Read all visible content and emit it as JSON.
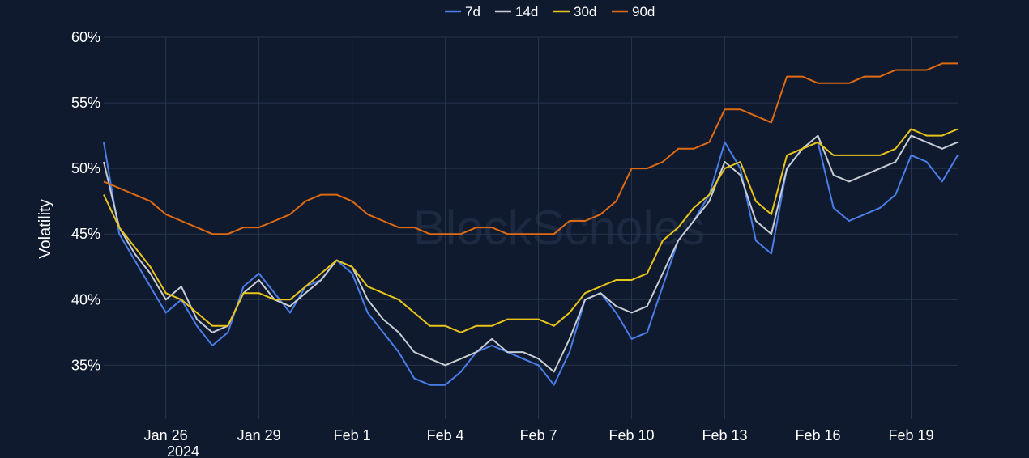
{
  "chart_data": {
    "type": "line",
    "title": "",
    "xlabel": "",
    "ylabel": "Volatility",
    "ylim": [
      0.32,
      0.6
    ],
    "y_ticks": [
      0.35,
      0.4,
      0.45,
      0.5,
      0.55,
      0.6
    ],
    "y_tick_labels": [
      "35%",
      "40%",
      "45%",
      "50%",
      "55%",
      "60%"
    ],
    "x_range": [
      "2024-01-24T00:00",
      "2024-02-20T12:00"
    ],
    "x_ticks": [
      "2024-01-26",
      "2024-01-29",
      "2024-02-01",
      "2024-02-04",
      "2024-02-07",
      "2024-02-10",
      "2024-02-13",
      "2024-02-16",
      "2024-02-19"
    ],
    "x_tick_labels": [
      "Jan 26",
      "Jan 29",
      "Feb 1",
      "Feb 4",
      "Feb 7",
      "Feb 10",
      "Feb 13",
      "Feb 16",
      "Feb 19"
    ],
    "x_tick_year": "2024",
    "grid": true,
    "legend_position": "top-center",
    "watermark": "BlockScholes",
    "x": [
      "2024-01-24T00:00",
      "2024-01-24T12:00",
      "2024-01-25T00:00",
      "2024-01-25T12:00",
      "2024-01-26T00:00",
      "2024-01-26T12:00",
      "2024-01-27T00:00",
      "2024-01-27T12:00",
      "2024-01-28T00:00",
      "2024-01-28T12:00",
      "2024-01-29T00:00",
      "2024-01-29T12:00",
      "2024-01-30T00:00",
      "2024-01-30T12:00",
      "2024-01-31T00:00",
      "2024-01-31T12:00",
      "2024-02-01T00:00",
      "2024-02-01T12:00",
      "2024-02-02T00:00",
      "2024-02-02T12:00",
      "2024-02-03T00:00",
      "2024-02-03T12:00",
      "2024-02-04T00:00",
      "2024-02-04T12:00",
      "2024-02-05T00:00",
      "2024-02-05T12:00",
      "2024-02-06T00:00",
      "2024-02-06T12:00",
      "2024-02-07T00:00",
      "2024-02-07T12:00",
      "2024-02-08T00:00",
      "2024-02-08T12:00",
      "2024-02-09T00:00",
      "2024-02-09T12:00",
      "2024-02-10T00:00",
      "2024-02-10T12:00",
      "2024-02-11T00:00",
      "2024-02-11T12:00",
      "2024-02-12T00:00",
      "2024-02-12T12:00",
      "2024-02-13T00:00",
      "2024-02-13T12:00",
      "2024-02-14T00:00",
      "2024-02-14T12:00",
      "2024-02-15T00:00",
      "2024-02-15T12:00",
      "2024-02-16T00:00",
      "2024-02-16T12:00",
      "2024-02-17T00:00",
      "2024-02-17T12:00",
      "2024-02-18T00:00",
      "2024-02-18T12:00",
      "2024-02-19T00:00",
      "2024-02-19T12:00",
      "2024-02-20T00:00",
      "2024-02-20T12:00"
    ],
    "series": [
      {
        "name": "7d",
        "color": "#4a7de8",
        "values": [
          0.52,
          0.45,
          0.43,
          0.41,
          0.39,
          0.4,
          0.38,
          0.365,
          0.375,
          0.41,
          0.42,
          0.405,
          0.39,
          0.41,
          0.415,
          0.43,
          0.42,
          0.39,
          0.375,
          0.36,
          0.34,
          0.335,
          0.335,
          0.345,
          0.36,
          0.365,
          0.36,
          0.355,
          0.35,
          0.335,
          0.36,
          0.4,
          0.405,
          0.39,
          0.37,
          0.375,
          0.41,
          0.445,
          0.46,
          0.48,
          0.52,
          0.5,
          0.445,
          0.435,
          0.5,
          0.515,
          0.52,
          0.47,
          0.46,
          0.465,
          0.47,
          0.48,
          0.51,
          0.505,
          0.49,
          0.51
        ]
      },
      {
        "name": "14d",
        "color": "#c8ccd4",
        "values": [
          0.505,
          0.455,
          0.435,
          0.42,
          0.4,
          0.41,
          0.385,
          0.375,
          0.38,
          0.405,
          0.415,
          0.4,
          0.395,
          0.405,
          0.415,
          0.43,
          0.425,
          0.4,
          0.385,
          0.375,
          0.36,
          0.355,
          0.35,
          0.355,
          0.36,
          0.37,
          0.36,
          0.36,
          0.355,
          0.345,
          0.37,
          0.4,
          0.405,
          0.395,
          0.39,
          0.395,
          0.42,
          0.445,
          0.46,
          0.475,
          0.505,
          0.495,
          0.46,
          0.45,
          0.5,
          0.515,
          0.525,
          0.495,
          0.49,
          0.495,
          0.5,
          0.505,
          0.525,
          0.52,
          0.515,
          0.52
        ]
      },
      {
        "name": "30d",
        "color": "#e8c41a",
        "values": [
          0.48,
          0.455,
          0.44,
          0.425,
          0.405,
          0.4,
          0.39,
          0.38,
          0.38,
          0.405,
          0.405,
          0.4,
          0.4,
          0.41,
          0.42,
          0.43,
          0.425,
          0.41,
          0.405,
          0.4,
          0.39,
          0.38,
          0.38,
          0.375,
          0.38,
          0.38,
          0.385,
          0.385,
          0.385,
          0.38,
          0.39,
          0.405,
          0.41,
          0.415,
          0.415,
          0.42,
          0.445,
          0.455,
          0.47,
          0.48,
          0.5,
          0.505,
          0.475,
          0.465,
          0.51,
          0.515,
          0.52,
          0.51,
          0.51,
          0.51,
          0.51,
          0.515,
          0.53,
          0.525,
          0.525,
          0.53
        ]
      },
      {
        "name": "90d",
        "color": "#e06a12",
        "values": [
          0.49,
          0.485,
          0.48,
          0.475,
          0.465,
          0.46,
          0.455,
          0.45,
          0.45,
          0.455,
          0.455,
          0.46,
          0.465,
          0.475,
          0.48,
          0.48,
          0.475,
          0.465,
          0.46,
          0.455,
          0.455,
          0.45,
          0.45,
          0.45,
          0.455,
          0.455,
          0.45,
          0.45,
          0.45,
          0.45,
          0.46,
          0.46,
          0.465,
          0.475,
          0.5,
          0.5,
          0.505,
          0.515,
          0.515,
          0.52,
          0.545,
          0.545,
          0.54,
          0.535,
          0.57,
          0.57,
          0.565,
          0.565,
          0.565,
          0.57,
          0.57,
          0.575,
          0.575,
          0.575,
          0.58,
          0.58
        ]
      }
    ]
  }
}
